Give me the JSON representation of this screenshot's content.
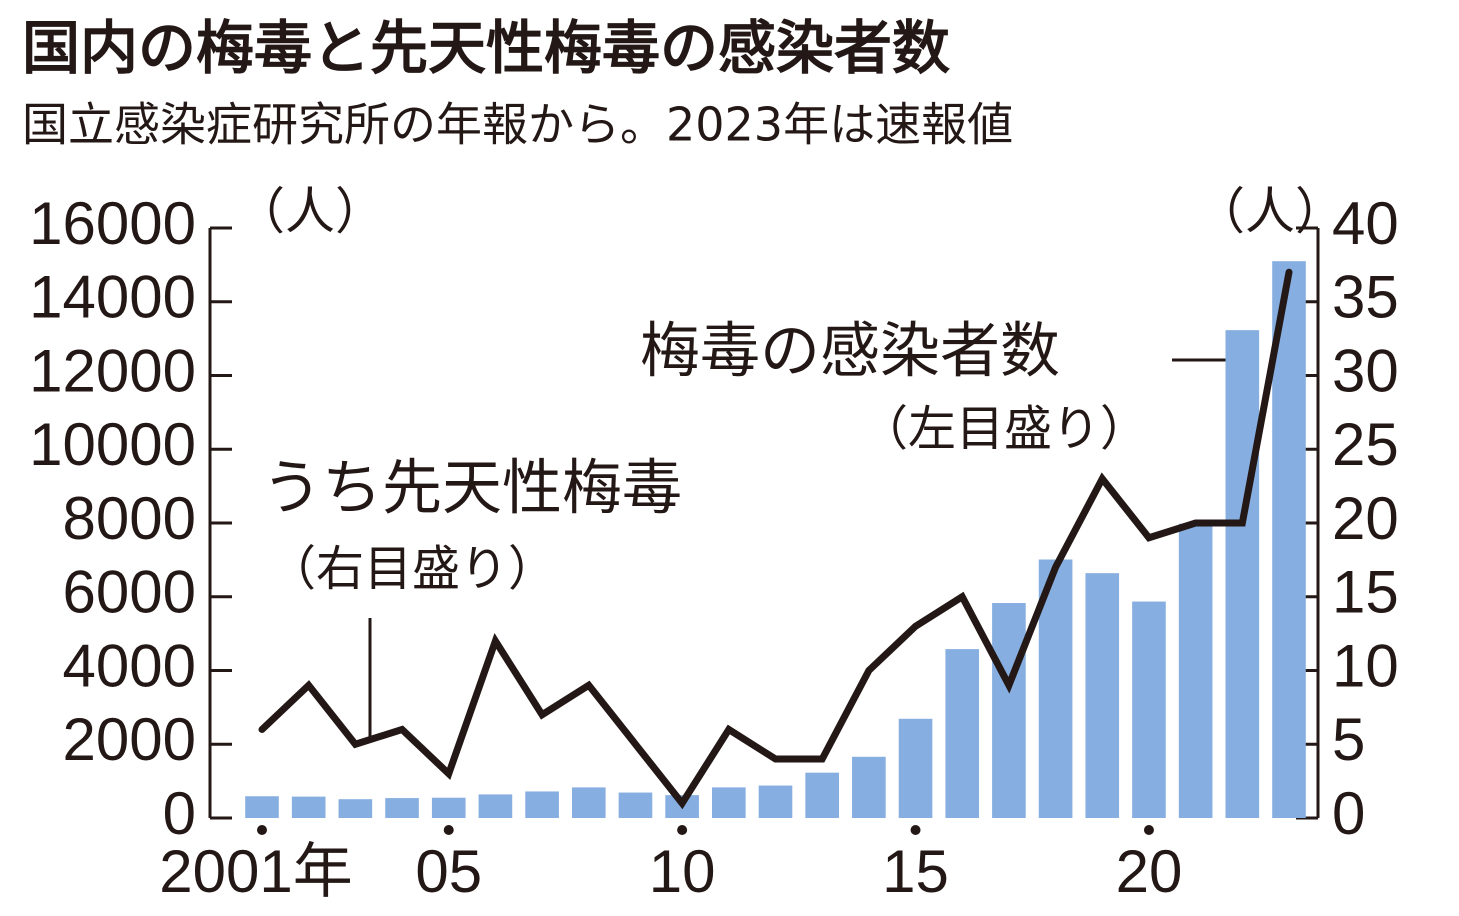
{
  "chart_data": {
    "type": "bar-line",
    "title": "国内の梅毒と先天性梅毒の感染者数",
    "subtitle": "国立感染症研究所の年報から。2023年は速報値",
    "y_unit": "（人）",
    "y2_unit": "（人）",
    "categories": [
      "2001年",
      null,
      null,
      null,
      "05",
      null,
      null,
      null,
      null,
      "10",
      null,
      null,
      null,
      null,
      "15",
      null,
      null,
      null,
      null,
      "20",
      null,
      null,
      null
    ],
    "series": [
      {
        "name": "梅毒の感染者数",
        "note": "（左目盛り）",
        "type": "bar",
        "color": "#86aee0",
        "values": [
          590,
          580,
          510,
          540,
          550,
          640,
          720,
          830,
          690,
          620,
          830,
          880,
          1230,
          1660,
          2690,
          4580,
          5830,
          7010,
          6640,
          5870,
          7980,
          13230,
          15100
        ]
      },
      {
        "name": "うち先天性梅毒",
        "note": "（右目盛り）",
        "type": "line",
        "axis": "y2",
        "color": "#231815",
        "values": [
          6,
          9,
          5,
          6,
          3,
          12,
          7,
          9,
          5,
          1,
          6,
          4,
          4,
          10,
          13,
          15,
          9,
          17,
          23,
          19,
          20,
          20,
          37
        ]
      }
    ],
    "ylim": [
      0,
      16000
    ],
    "yticks": [
      0,
      2000,
      4000,
      6000,
      8000,
      10000,
      12000,
      14000,
      16000
    ],
    "y2lim": [
      0,
      40
    ],
    "y2ticks": [
      0,
      5,
      10,
      15,
      20,
      25,
      30,
      35,
      40
    ]
  }
}
